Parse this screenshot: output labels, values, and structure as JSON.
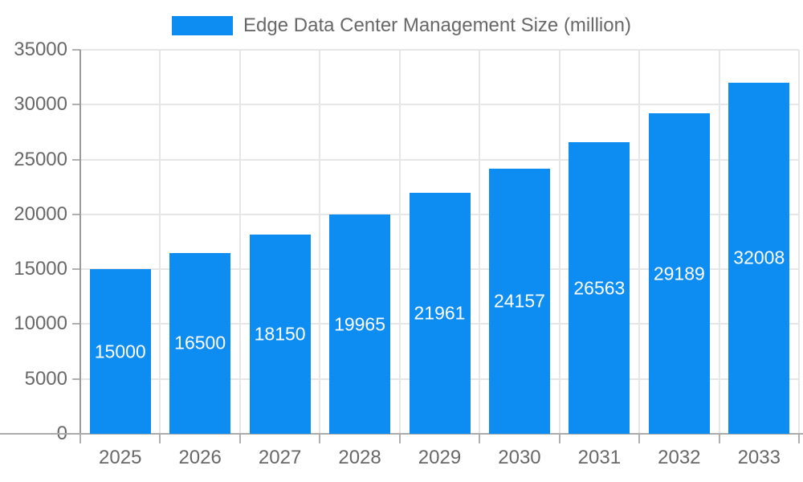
{
  "legend": {
    "label": "Edge Data Center Management Size (million)"
  },
  "colors": {
    "bar": "#0d8cf2",
    "bar_label": "#ffffff",
    "text": "#686868",
    "grid": "#e6e6e6",
    "axis": "#9a9a9a",
    "baseline": "#ababab",
    "tick": "#b0b0b0"
  },
  "chart_data": {
    "type": "bar",
    "title": "Edge Data Center Management Size (million)",
    "categories": [
      "2025",
      "2026",
      "2027",
      "2028",
      "2029",
      "2030",
      "2031",
      "2032",
      "2033"
    ],
    "values": [
      15000,
      16500,
      18150,
      19965,
      21961,
      24157,
      26563,
      29189,
      32008
    ],
    "bar_value_labels": [
      "15000",
      "16500",
      "18150",
      "19965",
      "21961",
      "24157",
      "26563",
      "29189",
      "32008"
    ],
    "xlabel": "",
    "ylabel": "",
    "ylim": [
      0,
      35000
    ],
    "ytick_step": 5000,
    "ytick_labels": [
      "0",
      "5000",
      "10000",
      "15000",
      "20000",
      "25000",
      "30000",
      "35000"
    ],
    "grid": true,
    "legend_position": "top",
    "value_label_position": "center-of-bar"
  }
}
